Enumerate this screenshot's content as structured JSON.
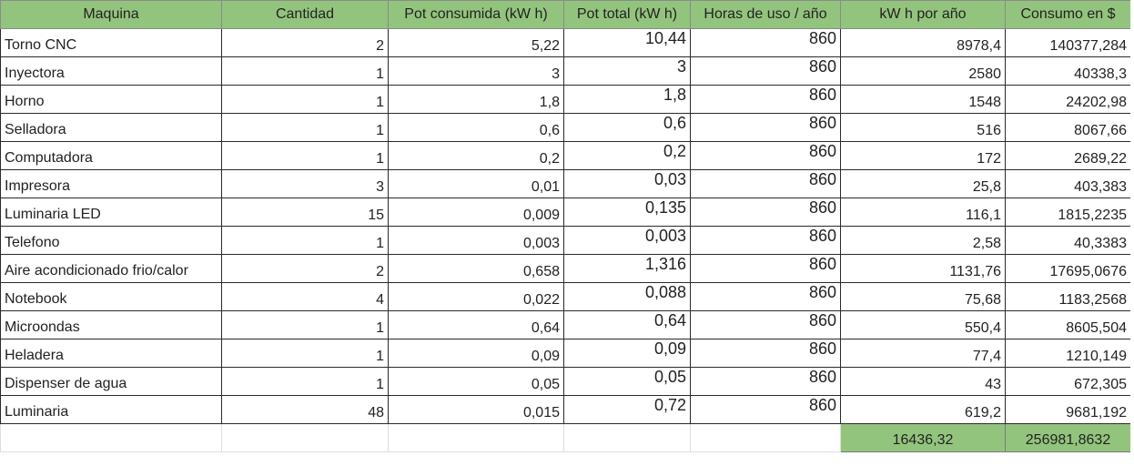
{
  "sheet": {
    "headers": {
      "machine": "Maquina",
      "qty": "Cantidad",
      "power": "Pot consumida (kW h)",
      "total_power": "Pot total (kW h)",
      "hours": "Horas de uso / año",
      "kwh_year": "kW h por año",
      "cost": "Consumo en $"
    },
    "rows": [
      {
        "machine": "Torno CNC",
        "qty": "2",
        "power": "5,22",
        "total_power": "10,44",
        "hours": "860",
        "kwh_year": "8978,4",
        "cost": "140377,284"
      },
      {
        "machine": "Inyectora",
        "qty": "1",
        "power": "3",
        "total_power": "3",
        "hours": "860",
        "kwh_year": "2580",
        "cost": "40338,3"
      },
      {
        "machine": "Horno",
        "qty": "1",
        "power": "1,8",
        "total_power": "1,8",
        "hours": "860",
        "kwh_year": "1548",
        "cost": "24202,98"
      },
      {
        "machine": "Selladora",
        "qty": "1",
        "power": "0,6",
        "total_power": "0,6",
        "hours": "860",
        "kwh_year": "516",
        "cost": "8067,66"
      },
      {
        "machine": "Computadora",
        "qty": "1",
        "power": "0,2",
        "total_power": "0,2",
        "hours": "860",
        "kwh_year": "172",
        "cost": "2689,22"
      },
      {
        "machine": "Impresora",
        "qty": "3",
        "power": "0,01",
        "total_power": "0,03",
        "hours": "860",
        "kwh_year": "25,8",
        "cost": "403,383"
      },
      {
        "machine": "Luminaria LED",
        "qty": "15",
        "power": "0,009",
        "total_power": "0,135",
        "hours": "860",
        "kwh_year": "116,1",
        "cost": "1815,2235"
      },
      {
        "machine": "Telefono",
        "qty": "1",
        "power": "0,003",
        "total_power": "0,003",
        "hours": "860",
        "kwh_year": "2,58",
        "cost": "40,3383"
      },
      {
        "machine": "Aire acondicionado frio/calor",
        "qty": "2",
        "power": "0,658",
        "total_power": "1,316",
        "hours": "860",
        "kwh_year": "1131,76",
        "cost": "17695,0676"
      },
      {
        "machine": "Notebook",
        "qty": "4",
        "power": "0,022",
        "total_power": "0,088",
        "hours": "860",
        "kwh_year": "75,68",
        "cost": "1183,2568"
      },
      {
        "machine": "Microondas",
        "qty": "1",
        "power": "0,64",
        "total_power": "0,64",
        "hours": "860",
        "kwh_year": "550,4",
        "cost": "8605,504"
      },
      {
        "machine": "Heladera",
        "qty": "1",
        "power": "0,09",
        "total_power": "0,09",
        "hours": "860",
        "kwh_year": "77,4",
        "cost": "1210,149"
      },
      {
        "machine": "Dispenser de agua",
        "qty": "1",
        "power": "0,05",
        "total_power": "0,05",
        "hours": "860",
        "kwh_year": "43",
        "cost": "672,305"
      },
      {
        "machine": "Luminaria",
        "qty": "48",
        "power": "0,015",
        "total_power": "0,72",
        "hours": "860",
        "kwh_year": "619,2",
        "cost": "9681,192"
      }
    ],
    "totals": {
      "kwh_year": "16436,32",
      "cost": "256981,8632"
    },
    "colors": {
      "header_fill": "#93c47d",
      "total_fill": "#93c47d"
    }
  }
}
